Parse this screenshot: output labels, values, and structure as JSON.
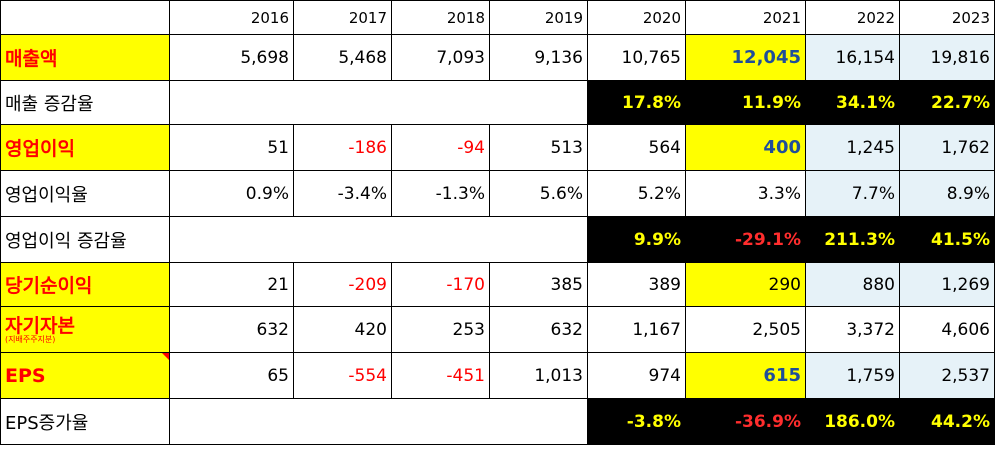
{
  "columns": [
    "",
    "2016",
    "2017",
    "2018",
    "2019",
    "2020",
    "2021",
    "2022",
    "2023"
  ],
  "rows": [
    {
      "label": "매출액",
      "cells": [
        "5,698",
        "5,468",
        "7,093",
        "9,136",
        "10,765",
        "12,045",
        "16,154",
        "19,816"
      ]
    },
    {
      "label": "매출 증감율",
      "cells": [
        "",
        "",
        "",
        "",
        "17.8%",
        "11.9%",
        "34.1%",
        "22.7%"
      ]
    },
    {
      "label": "영업이익",
      "cells": [
        "51",
        "-186",
        "-94",
        "513",
        "564",
        "400",
        "1,245",
        "1,762"
      ]
    },
    {
      "label": "영업이익율",
      "cells": [
        "0.9%",
        "-3.4%",
        "-1.3%",
        "5.6%",
        "5.2%",
        "3.3%",
        "7.7%",
        "8.9%"
      ]
    },
    {
      "label": "영업이익 증감율",
      "cells": [
        "",
        "",
        "",
        "",
        "9.9%",
        "-29.1%",
        "211.3%",
        "41.5%"
      ]
    },
    {
      "label": "당기순이익",
      "cells": [
        "21",
        "-209",
        "-170",
        "385",
        "389",
        "290",
        "880",
        "1,269"
      ]
    },
    {
      "label": "자기자본",
      "sublabel": "(지배주주지분)",
      "cells": [
        "632",
        "420",
        "253",
        "632",
        "1,167",
        "2,505",
        "3,372",
        "4,606"
      ]
    },
    {
      "label": "EPS",
      "cells": [
        "65",
        "-554",
        "-451",
        "1,013",
        "974",
        "615",
        "1,759",
        "2,537"
      ]
    },
    {
      "label": "EPS증가율",
      "cells": [
        "",
        "",
        "",
        "",
        "-3.8%",
        "-36.9%",
        "186.0%",
        "44.2%"
      ]
    }
  ],
  "colors": {
    "highlight_yellow": "#ffff00",
    "negative_red": "#ff0000",
    "black_band": "#000000",
    "light_blue": "#e6f2f8",
    "emphasis_blue": "#1f4e9a"
  }
}
